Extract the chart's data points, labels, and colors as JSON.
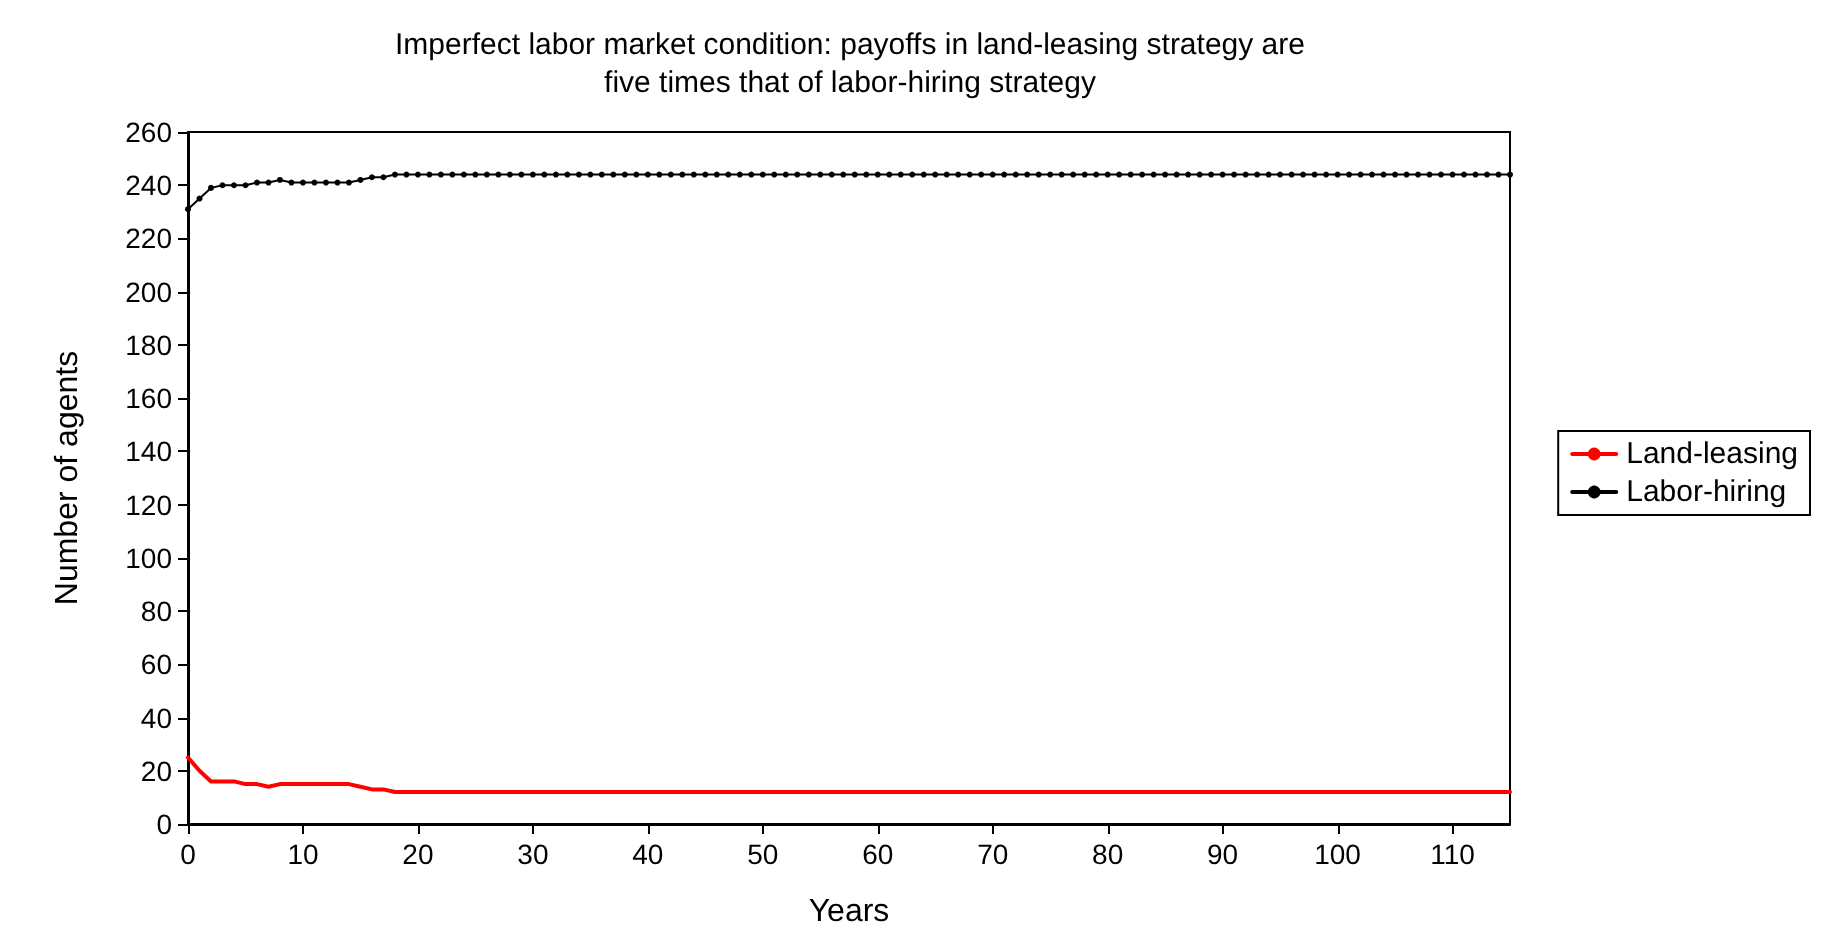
{
  "chart_data": {
    "type": "line",
    "title": "Imperfect labor market condition: payoffs in land-leasing strategy are\nfive times that of labor-hiring strategy",
    "xlabel": "Years",
    "ylabel": "Number of agents",
    "x": [
      0,
      1,
      2,
      3,
      4,
      5,
      6,
      7,
      8,
      9,
      10,
      11,
      12,
      13,
      14,
      15,
      16,
      17,
      18,
      19,
      20,
      21,
      22,
      23,
      24,
      25,
      26,
      27,
      28,
      29,
      30,
      31,
      32,
      33,
      34,
      35,
      36,
      37,
      38,
      39,
      40,
      41,
      42,
      43,
      44,
      45,
      46,
      47,
      48,
      49,
      50,
      51,
      52,
      53,
      54,
      55,
      56,
      57,
      58,
      59,
      60,
      61,
      62,
      63,
      64,
      65,
      66,
      67,
      68,
      69,
      70,
      71,
      72,
      73,
      74,
      75,
      76,
      77,
      78,
      79,
      80,
      81,
      82,
      83,
      84,
      85,
      86,
      87,
      88,
      89,
      90,
      91,
      92,
      93,
      94,
      95,
      96,
      97,
      98,
      99,
      100,
      101,
      102,
      103,
      104,
      105,
      106,
      107,
      108,
      109,
      110,
      111,
      112,
      113,
      114,
      115
    ],
    "series": [
      {
        "name": "Land-leasing",
        "color": "#ff0000",
        "marker": "none",
        "values": [
          25,
          20,
          16,
          16,
          16,
          15,
          15,
          14,
          15,
          15,
          15,
          15,
          15,
          15,
          15,
          14,
          13,
          13,
          12,
          12,
          12,
          12,
          12,
          12,
          12,
          12,
          12,
          12,
          12,
          12,
          12,
          12,
          12,
          12,
          12,
          12,
          12,
          12,
          12,
          12,
          12,
          12,
          12,
          12,
          12,
          12,
          12,
          12,
          12,
          12,
          12,
          12,
          12,
          12,
          12,
          12,
          12,
          12,
          12,
          12,
          12,
          12,
          12,
          12,
          12,
          12,
          12,
          12,
          12,
          12,
          12,
          12,
          12,
          12,
          12,
          12,
          12,
          12,
          12,
          12,
          12,
          12,
          12,
          12,
          12,
          12,
          12,
          12,
          12,
          12,
          12,
          12,
          12,
          12,
          12,
          12,
          12,
          12,
          12,
          12,
          12,
          12,
          12,
          12,
          12,
          12,
          12,
          12,
          12,
          12,
          12,
          12,
          12,
          12,
          12,
          12
        ]
      },
      {
        "name": "Labor-hiring",
        "color": "#000000",
        "marker": "circle",
        "values": [
          231,
          235,
          239,
          240,
          240,
          240,
          241,
          241,
          242,
          241,
          241,
          241,
          241,
          241,
          241,
          242,
          243,
          243,
          244,
          244,
          244,
          244,
          244,
          244,
          244,
          244,
          244,
          244,
          244,
          244,
          244,
          244,
          244,
          244,
          244,
          244,
          244,
          244,
          244,
          244,
          244,
          244,
          244,
          244,
          244,
          244,
          244,
          244,
          244,
          244,
          244,
          244,
          244,
          244,
          244,
          244,
          244,
          244,
          244,
          244,
          244,
          244,
          244,
          244,
          244,
          244,
          244,
          244,
          244,
          244,
          244,
          244,
          244,
          244,
          244,
          244,
          244,
          244,
          244,
          244,
          244,
          244,
          244,
          244,
          244,
          244,
          244,
          244,
          244,
          244,
          244,
          244,
          244,
          244,
          244,
          244,
          244,
          244,
          244,
          244,
          244,
          244,
          244,
          244,
          244,
          244,
          244,
          244,
          244,
          244,
          244,
          244,
          244,
          244,
          244,
          244
        ]
      }
    ],
    "xlim": [
      0,
      115
    ],
    "xticks": [
      0,
      10,
      20,
      30,
      40,
      50,
      60,
      70,
      80,
      90,
      100,
      110
    ],
    "ylim": [
      0,
      260
    ],
    "yticks": [
      0,
      20,
      40,
      60,
      80,
      100,
      120,
      140,
      160,
      180,
      200,
      220,
      240,
      260
    ],
    "grid": false,
    "legend": "right",
    "line_style": "solid"
  }
}
